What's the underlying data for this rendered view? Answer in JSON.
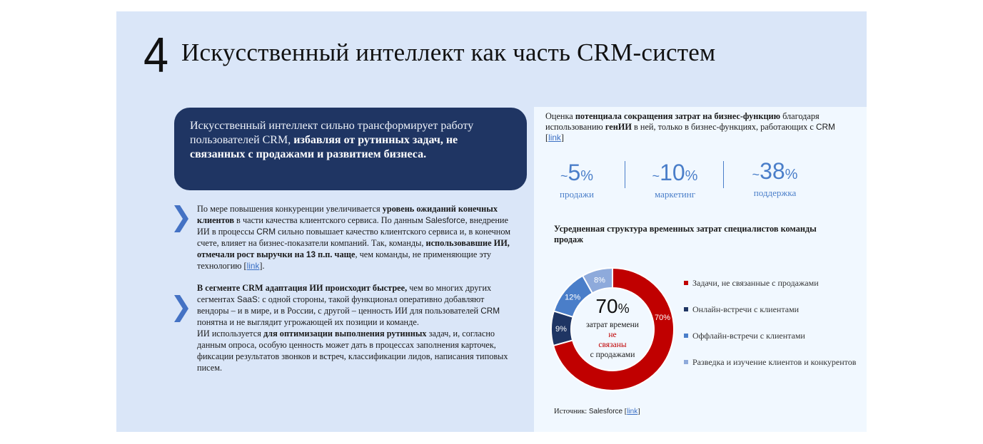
{
  "slide": {
    "number": "4",
    "title": "Искусственный интеллект как часть CRM-систем"
  },
  "callout": {
    "text_normal": "Искусственный интеллект сильно трансформирует работу пользователей CRM, ",
    "text_bold": "избавляя от рутинных задач, не связанных с продажами и развитием бизнеса."
  },
  "bullets": [
    {
      "icon": "chevron-right-icon",
      "parts": {
        "p1": "По мере повышения конкуренции увеличивается ",
        "b1": "уровень ожиданий конечных клиентов",
        "p2": " в части качества клиентского сервиса.  По данным ",
        "s1": "Salesforce",
        "p3": ", внедрение ИИ в процессы ",
        "s2": "CRM",
        "p4": " сильно повышает качество клиентского сервиса и, в конечном счете, влияет на бизнес-показатели компаний. Так, команды, ",
        "b2": "использовавшие ИИ, отмечали рост выручки на ",
        "s3": "13",
        "b3": " п.п. чаще",
        "p5": ", чем команды, не применяющие эту технологию [",
        "link": "link",
        "p6": "]."
      }
    },
    {
      "icon": "chevron-right-icon",
      "parts": {
        "b1": "В сегменте CRM адаптация ИИ происходит быстрее,",
        "p1": " чем во многих других сегментах ",
        "s1": "SaaS:",
        "p2": " с одной стороны, такой функционал оперативно добавляют вендоры – и в мире, и в России, с другой – ценность ИИ для пользователей ",
        "s2": "CRM",
        "p3": " понятна и не выглядит угрожающей их позиции и команде.",
        "p4": "ИИ используется ",
        "b2": "для оптимизации выполнения рутинных",
        "p5": " задач, и, согласно данным опроса, особую ценность может дать    в процессах заполнения карточек, фиксации результатов звонков и встреч, классификации лидов, написания типовых писем."
      }
    }
  ],
  "right_panel": {
    "header": {
      "p1": "Оценка ",
      "b1": "потенциала сокращения затрат на бизнес-функцию",
      "p2": " благодаря использованию  ",
      "b2": "генИИ",
      "p3": " в ней, только в бизнес-функциях,  работающих с ",
      "s1": "CRM",
      "p4": "[",
      "link": "link",
      "p5": "]"
    },
    "stats": [
      {
        "tilde": "~",
        "value": "5",
        "pct": "%",
        "label": "продажи"
      },
      {
        "tilde": "~",
        "value": "10",
        "pct": "%",
        "label": "маркетинг"
      },
      {
        "tilde": "~",
        "value": "38",
        "pct": "%",
        "label": "поддержка"
      }
    ],
    "chart_title": "Усредненная структура временных затрат специалистов команды продаж",
    "center": {
      "big": "70",
      "pct": "%",
      "l1": "затрат времени ",
      "l1_red": "не",
      "l2_red": "связаны",
      "l3": "с продажами"
    },
    "source": {
      "label": "Источник: ",
      "name": "Salesforce",
      "open": " [",
      "link": "link",
      "close": "]"
    }
  },
  "chart_data": {
    "type": "pie",
    "subtype": "donut",
    "title": "Усредненная структура временных затрат специалистов команды продаж",
    "categories": [
      "Задачи, не связанные с продажами",
      "Онлайн-встречи с клиентами",
      "Оффлайн-встречи с клиентами",
      "Разведка и изучение клиентов и конкурентов"
    ],
    "values": [
      70,
      9,
      12,
      8
    ],
    "labels": [
      "70%",
      "9%",
      "12%",
      "8%"
    ],
    "colors": [
      "#c00000",
      "#1f3563",
      "#4a7ec9",
      "#8eaadb"
    ],
    "legend_position": "right",
    "center_annotation": "70% затрат времени не связаны с продажами"
  },
  "colors": {
    "slide_bg": "#dae6f8",
    "panel_bg": "#f1f8ff",
    "callout_bg": "#1f3563",
    "accent_blue": "#4a7ec9",
    "accent_red": "#c00000"
  }
}
